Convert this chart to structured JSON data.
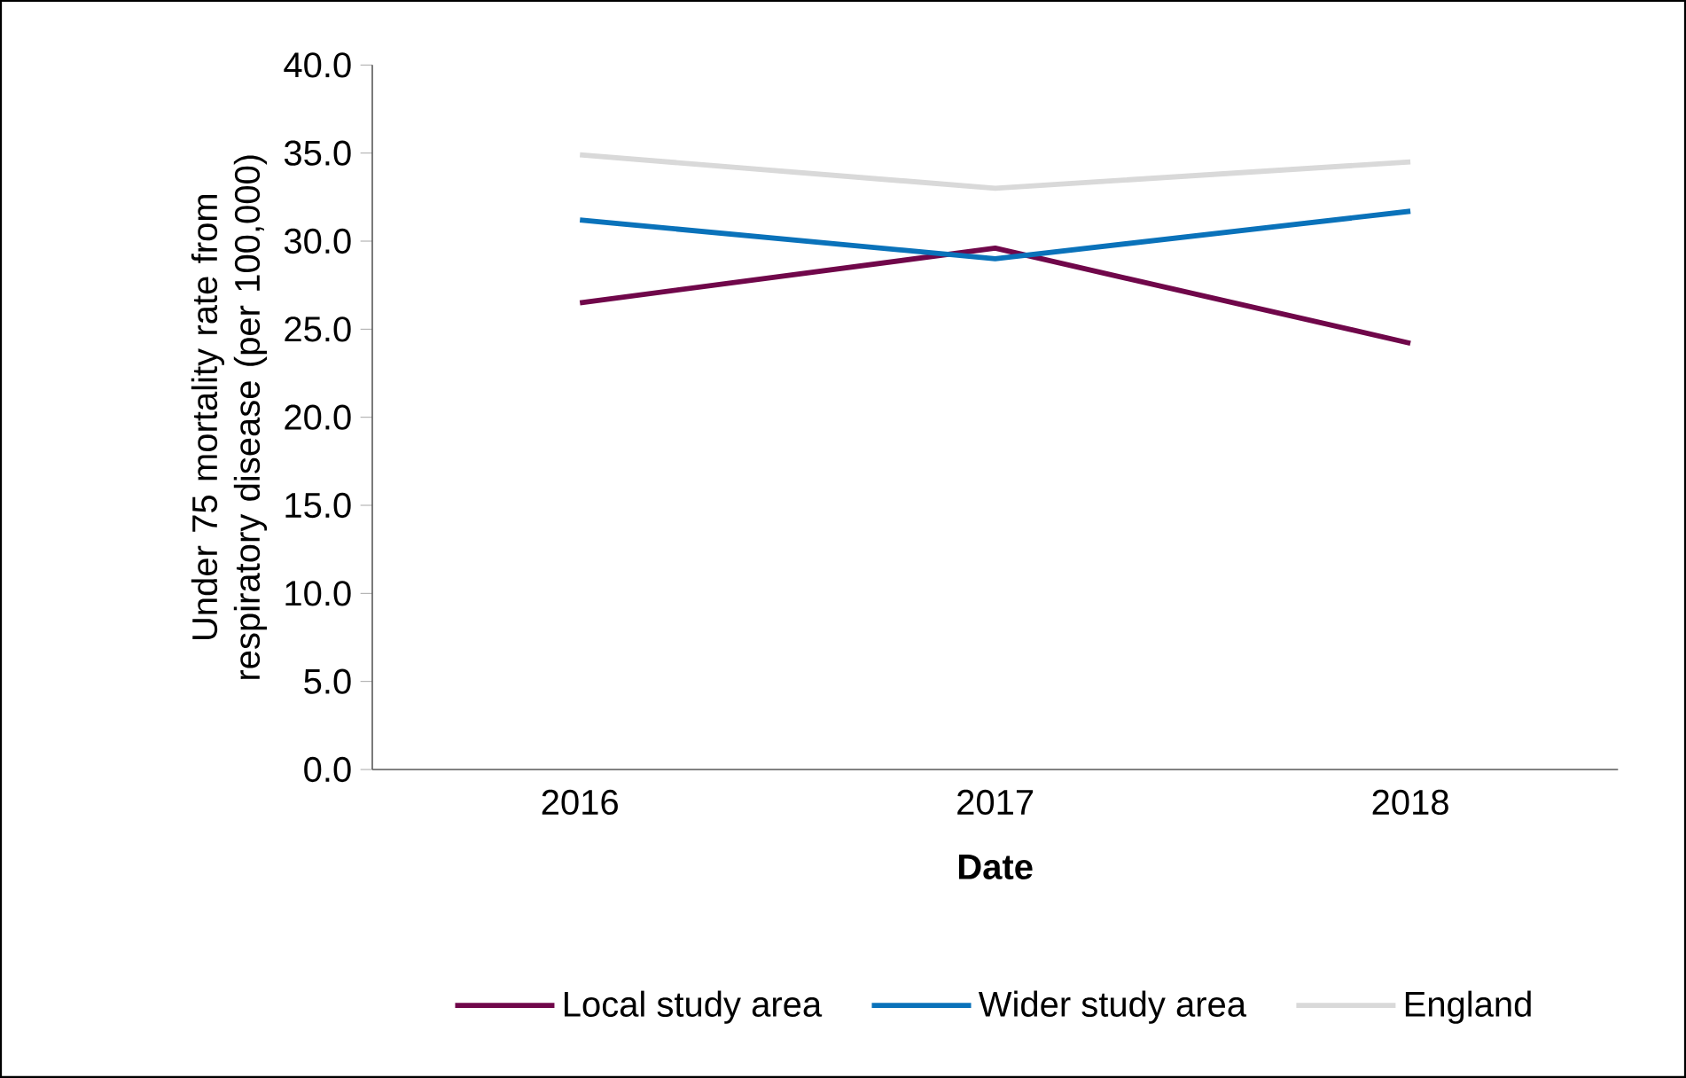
{
  "chart_data": {
    "type": "line",
    "xlabel": "Date",
    "ylabel": "Under 75 mortality rate from respiratory disease (per 100,000)",
    "categories": [
      "2016",
      "2017",
      "2018"
    ],
    "series": [
      {
        "name": "Local study area",
        "color": "#70074a",
        "values": [
          26.5,
          29.6,
          24.2
        ]
      },
      {
        "name": "Wider study area",
        "color": "#0a72ba",
        "values": [
          31.2,
          29.0,
          31.7
        ]
      },
      {
        "name": "England",
        "color": "#d9d9d9",
        "values": [
          34.9,
          33.0,
          34.5
        ]
      }
    ],
    "ylim": [
      0,
      40
    ],
    "yticks": [
      {
        "value": 0,
        "label": "0.0"
      },
      {
        "value": 5,
        "label": "5.0"
      },
      {
        "value": 10,
        "label": "10.0"
      },
      {
        "value": 15,
        "label": "15.0"
      },
      {
        "value": 20,
        "label": "20.0"
      },
      {
        "value": 25,
        "label": "25.0"
      },
      {
        "value": 30,
        "label": "30.0"
      },
      {
        "value": 35,
        "label": "35.0"
      },
      {
        "value": 40,
        "label": "40.0"
      }
    ],
    "legend": "bottom",
    "grid": false,
    "marker": "none",
    "line_style": "solid"
  }
}
